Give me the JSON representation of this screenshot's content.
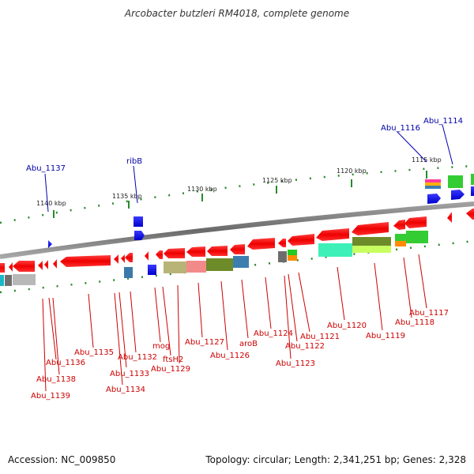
{
  "title": "Arcobacter butzleri RM4018, complete genome",
  "footer": {
    "accession": "Accession: NC_009850",
    "summary": "Topology: circular; Length: 2,341,251 bp; Genes: 2,328"
  },
  "scale_labels": [
    "1140 kbp",
    "1135 kbp",
    "1130 kbp",
    "1125 kbp",
    "1120 kbp",
    "1115 kbp"
  ],
  "top_labels": [
    "Abu_1137",
    "ribB",
    "Abu_1116",
    "Abu_1114"
  ],
  "bottom_labels": [
    "Abu_1135",
    "Abu_1136",
    "Abu_1138",
    "Abu_1139",
    "Abu_1132",
    "Abu_1133",
    "Abu_1134",
    "mog",
    "ftsH2",
    "Abu_1129",
    "Abu_1127",
    "Abu_1126",
    "aroB",
    "Abu_1124",
    "Abu_1122",
    "Abu_1123",
    "Abu_1121",
    "Abu_1120",
    "Abu_1119",
    "Abu_1118",
    "Abu_1117"
  ],
  "colors": {
    "gene_red": "#ff0000",
    "gene_blue": "#0000ee",
    "label_red": "#cc0000",
    "label_blue": "#0000aa",
    "tick_green": "#2a8a2a",
    "backbone_gray": "#8c8c8c"
  }
}
